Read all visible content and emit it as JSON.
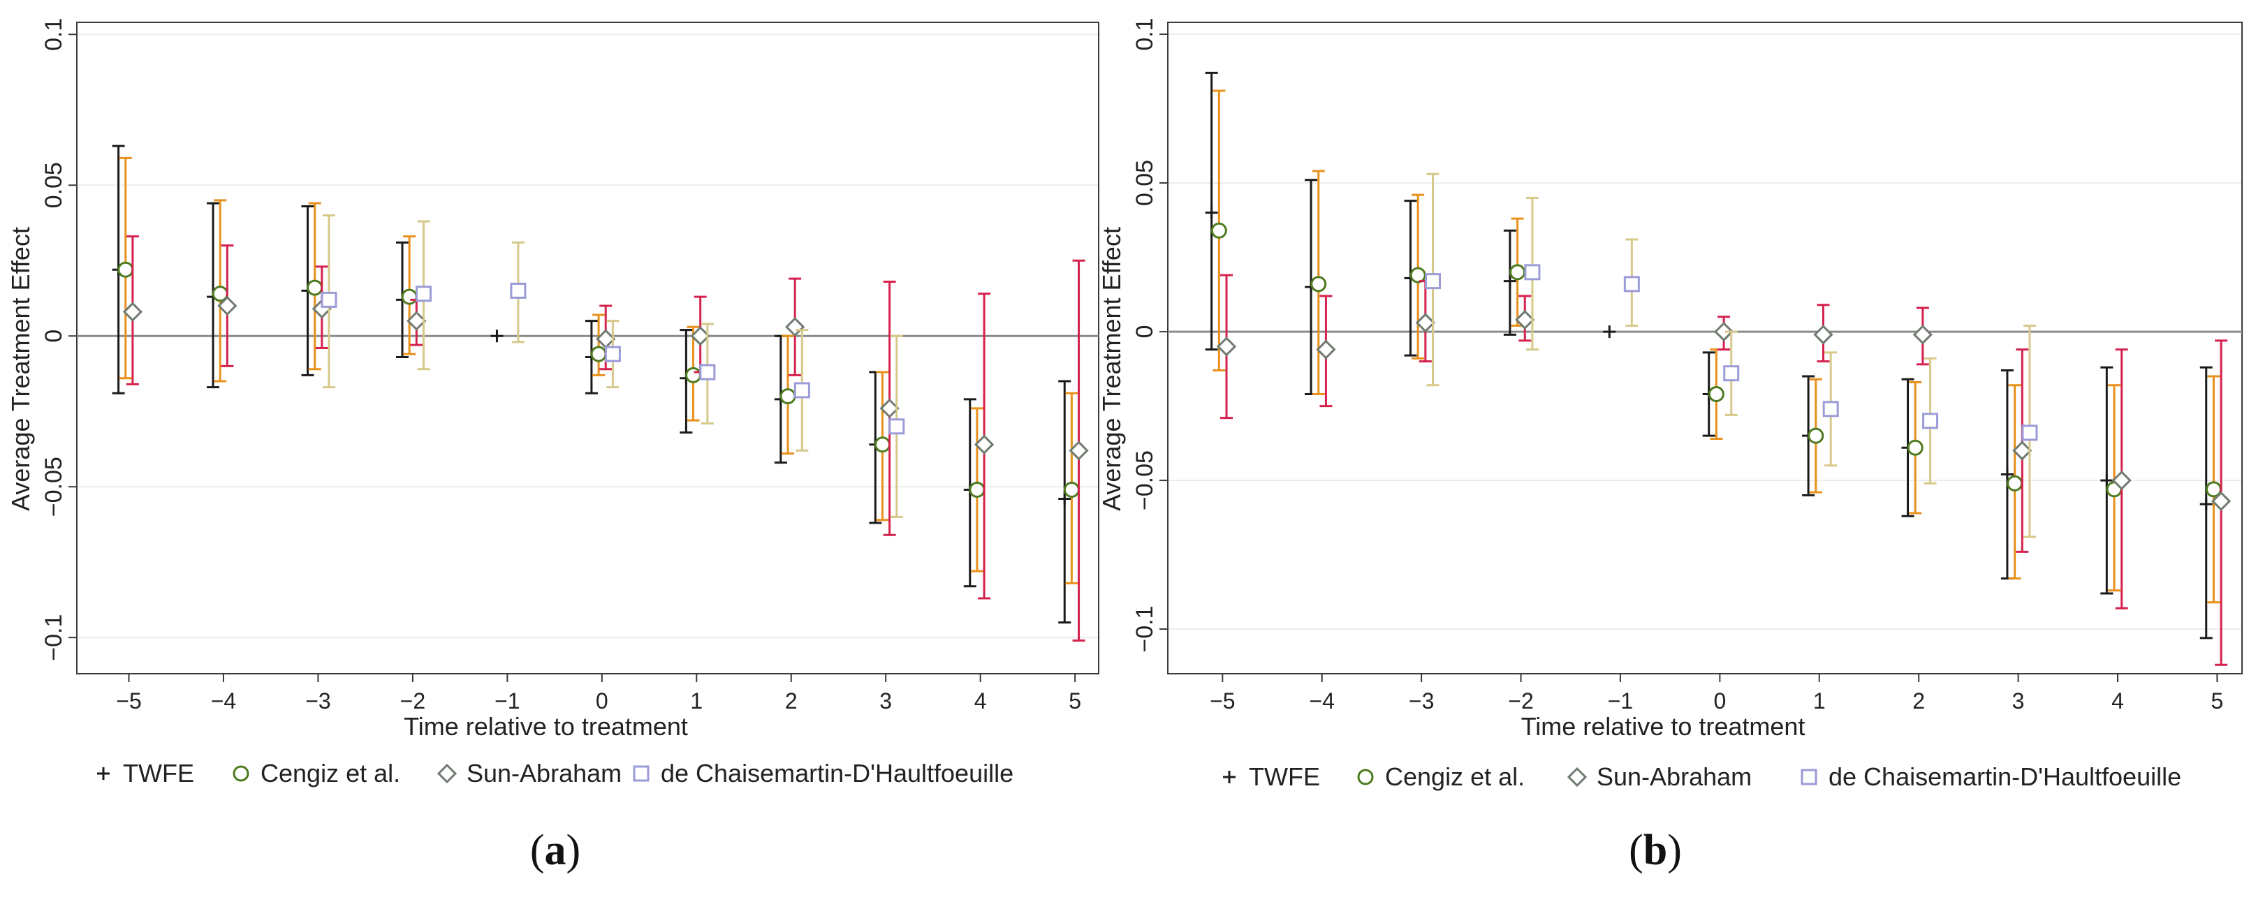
{
  "panels": [
    {
      "label_prefix": "(",
      "label_letter": "a",
      "label_suffix": ")",
      "chart_data": {
        "type": "scatter",
        "xlabel": "Time relative to treatment",
        "ylabel": "Average Treatment Effect",
        "x_ticks": [
          -5,
          -4,
          -3,
          -2,
          -1,
          0,
          1,
          2,
          3,
          4,
          5
        ],
        "x_tick_labels": [
          "−5",
          "−4",
          "−3",
          "−2",
          "−1",
          "0",
          "1",
          "2",
          "3",
          "4",
          "5"
        ],
        "y_ticks": [
          -0.1,
          -0.05,
          0,
          0.05,
          0.1
        ],
        "y_tick_labels": [
          "−0.1",
          "−0.05",
          "0",
          "0.05",
          "0.1"
        ],
        "xlim": [
          -5.55,
          5.25
        ],
        "ylim": [
          -0.112,
          0.104
        ],
        "legend": {
          "position": "bottom",
          "entries": [
            {
              "marker": "plus",
              "label": "TWFE"
            },
            {
              "marker": "circle",
              "label": "Cengiz et al."
            },
            {
              "marker": "diamond",
              "label": "Sun-Abraham"
            },
            {
              "marker": "square",
              "label": "de Chaisemartin-D'Haultfoeuille"
            }
          ]
        },
        "series": [
          {
            "name": "TWFE",
            "color": "#1a1a1a",
            "marker": "plus",
            "points": [
              {
                "t": -5,
                "est": 0.022,
                "lo": -0.019,
                "hi": 0.063
              },
              {
                "t": -4,
                "est": 0.013,
                "lo": -0.017,
                "hi": 0.044
              },
              {
                "t": -3,
                "est": 0.015,
                "lo": -0.013,
                "hi": 0.043
              },
              {
                "t": -2,
                "est": 0.012,
                "lo": -0.007,
                "hi": 0.031
              },
              {
                "t": -1,
                "est": 0.0,
                "lo": 0.0,
                "hi": 0.0
              },
              {
                "t": 0,
                "est": -0.007,
                "lo": -0.019,
                "hi": 0.005
              },
              {
                "t": 1,
                "est": -0.014,
                "lo": -0.032,
                "hi": 0.002
              },
              {
                "t": 2,
                "est": -0.021,
                "lo": -0.042,
                "hi": 0.0
              },
              {
                "t": 3,
                "est": -0.036,
                "lo": -0.062,
                "hi": -0.012
              },
              {
                "t": 4,
                "est": -0.051,
                "lo": -0.083,
                "hi": -0.021
              },
              {
                "t": 5,
                "est": -0.054,
                "lo": -0.095,
                "hi": -0.015
              }
            ]
          },
          {
            "name": "Cengiz et al.",
            "color": "#4e7a1e",
            "bar_color": "#e8901c",
            "marker": "circle",
            "points": [
              {
                "t": -5,
                "est": 0.022,
                "lo": -0.014,
                "hi": 0.059
              },
              {
                "t": -4,
                "est": 0.014,
                "lo": -0.015,
                "hi": 0.045
              },
              {
                "t": -3,
                "est": 0.016,
                "lo": -0.011,
                "hi": 0.044
              },
              {
                "t": -2,
                "est": 0.013,
                "lo": -0.006,
                "hi": 0.033
              },
              {
                "t": 0,
                "est": -0.006,
                "lo": -0.013,
                "hi": 0.007
              },
              {
                "t": 1,
                "est": -0.013,
                "lo": -0.028,
                "hi": 0.003
              },
              {
                "t": 2,
                "est": -0.02,
                "lo": -0.039,
                "hi": 0.0
              },
              {
                "t": 3,
                "est": -0.036,
                "lo": -0.061,
                "hi": -0.012
              },
              {
                "t": 4,
                "est": -0.051,
                "lo": -0.078,
                "hi": -0.024
              },
              {
                "t": 5,
                "est": -0.051,
                "lo": -0.082,
                "hi": -0.019
              }
            ]
          },
          {
            "name": "Sun-Abraham",
            "color": "#707a70",
            "bar_color": "#d4214d",
            "marker": "diamond",
            "points": [
              {
                "t": -5,
                "est": 0.008,
                "lo": -0.016,
                "hi": 0.033
              },
              {
                "t": -4,
                "est": 0.01,
                "lo": -0.01,
                "hi": 0.03
              },
              {
                "t": -3,
                "est": 0.009,
                "lo": -0.004,
                "hi": 0.023
              },
              {
                "t": -2,
                "est": 0.005,
                "lo": -0.003,
                "hi": 0.012
              },
              {
                "t": 0,
                "est": -0.001,
                "lo": -0.011,
                "hi": 0.01
              },
              {
                "t": 1,
                "est": 0.0,
                "lo": -0.012,
                "hi": 0.013
              },
              {
                "t": 2,
                "est": 0.003,
                "lo": -0.013,
                "hi": 0.019
              },
              {
                "t": 3,
                "est": -0.024,
                "lo": -0.066,
                "hi": 0.018
              },
              {
                "t": 4,
                "est": -0.036,
                "lo": -0.087,
                "hi": 0.014
              },
              {
                "t": 5,
                "est": -0.038,
                "lo": -0.101,
                "hi": 0.025
              }
            ]
          },
          {
            "name": "de Chaisemartin-D'Haultfoeuille",
            "color": "#9b9bd8",
            "bar_color": "#d6c98a",
            "marker": "square",
            "points": [
              {
                "t": -3,
                "est": 0.012,
                "lo": -0.017,
                "hi": 0.04
              },
              {
                "t": -2,
                "est": 0.014,
                "lo": -0.011,
                "hi": 0.038
              },
              {
                "t": -1,
                "est": 0.015,
                "lo": -0.002,
                "hi": 0.031
              },
              {
                "t": 0,
                "est": -0.006,
                "lo": -0.017,
                "hi": 0.005
              },
              {
                "t": 1,
                "est": -0.012,
                "lo": -0.029,
                "hi": 0.004
              },
              {
                "t": 2,
                "est": -0.018,
                "lo": -0.038,
                "hi": 0.002
              },
              {
                "t": 3,
                "est": -0.03,
                "lo": -0.06,
                "hi": 0.0
              }
            ]
          }
        ]
      }
    },
    {
      "label_prefix": "(",
      "label_letter": "b",
      "label_suffix": ")",
      "chart_data": {
        "type": "scatter",
        "xlabel": "Time relative to treatment",
        "ylabel": "Average Treatment Effect",
        "x_ticks": [
          -5,
          -4,
          -3,
          -2,
          -1,
          0,
          1,
          2,
          3,
          4,
          5
        ],
        "x_tick_labels": [
          "−5",
          "−4",
          "−3",
          "−2",
          "−1",
          "0",
          "1",
          "2",
          "3",
          "4",
          "5"
        ],
        "y_ticks": [
          -0.1,
          -0.05,
          0,
          0.05,
          0.1
        ],
        "y_tick_labels": [
          "−0.1",
          "−0.05",
          "0",
          "0.05",
          "0.1"
        ],
        "xlim": [
          -5.55,
          5.25
        ],
        "ylim": [
          -0.115,
          0.104
        ],
        "legend": {
          "position": "bottom",
          "entries": [
            {
              "marker": "plus",
              "label": "TWFE"
            },
            {
              "marker": "circle",
              "label": "Cengiz et al."
            },
            {
              "marker": "diamond",
              "label": "Sun-Abraham"
            },
            {
              "marker": "square",
              "label": "de Chaisemartin-D'Haultfoeuille"
            }
          ]
        },
        "series": [
          {
            "name": "TWFE",
            "color": "#1a1a1a",
            "marker": "plus",
            "points": [
              {
                "t": -5,
                "est": 0.04,
                "lo": -0.006,
                "hi": 0.087
              },
              {
                "t": -4,
                "est": 0.015,
                "lo": -0.021,
                "hi": 0.051
              },
              {
                "t": -3,
                "est": 0.018,
                "lo": -0.008,
                "hi": 0.044
              },
              {
                "t": -2,
                "est": 0.017,
                "lo": -0.001,
                "hi": 0.034
              },
              {
                "t": -1,
                "est": 0.0,
                "lo": 0.0,
                "hi": 0.0
              },
              {
                "t": 0,
                "est": -0.021,
                "lo": -0.035,
                "hi": -0.007
              },
              {
                "t": 1,
                "est": -0.035,
                "lo": -0.055,
                "hi": -0.015
              },
              {
                "t": 2,
                "est": -0.039,
                "lo": -0.062,
                "hi": -0.016
              },
              {
                "t": 3,
                "est": -0.048,
                "lo": -0.083,
                "hi": -0.013
              },
              {
                "t": 4,
                "est": -0.05,
                "lo": -0.088,
                "hi": -0.012
              },
              {
                "t": 5,
                "est": -0.058,
                "lo": -0.103,
                "hi": -0.012
              }
            ]
          },
          {
            "name": "Cengiz et al.",
            "color": "#4e7a1e",
            "bar_color": "#e8901c",
            "marker": "circle",
            "points": [
              {
                "t": -5,
                "est": 0.034,
                "lo": -0.013,
                "hi": 0.081
              },
              {
                "t": -4,
                "est": 0.016,
                "lo": -0.021,
                "hi": 0.054
              },
              {
                "t": -3,
                "est": 0.019,
                "lo": -0.009,
                "hi": 0.046
              },
              {
                "t": -2,
                "est": 0.02,
                "lo": 0.002,
                "hi": 0.038
              },
              {
                "t": 0,
                "est": -0.021,
                "lo": -0.036,
                "hi": -0.006
              },
              {
                "t": 1,
                "est": -0.035,
                "lo": -0.054,
                "hi": -0.016
              },
              {
                "t": 2,
                "est": -0.039,
                "lo": -0.061,
                "hi": -0.017
              },
              {
                "t": 3,
                "est": -0.051,
                "lo": -0.083,
                "hi": -0.018
              },
              {
                "t": 4,
                "est": -0.053,
                "lo": -0.087,
                "hi": -0.018
              },
              {
                "t": 5,
                "est": -0.053,
                "lo": -0.091,
                "hi": -0.015
              }
            ]
          },
          {
            "name": "Sun-Abraham",
            "color": "#707a70",
            "bar_color": "#d4214d",
            "marker": "diamond",
            "points": [
              {
                "t": -5,
                "est": -0.005,
                "lo": -0.029,
                "hi": 0.019
              },
              {
                "t": -4,
                "est": -0.006,
                "lo": -0.025,
                "hi": 0.012
              },
              {
                "t": -3,
                "est": 0.003,
                "lo": -0.01,
                "hi": 0.017
              },
              {
                "t": -2,
                "est": 0.004,
                "lo": -0.003,
                "hi": 0.012
              },
              {
                "t": 0,
                "est": 0.0,
                "lo": -0.006,
                "hi": 0.005
              },
              {
                "t": 1,
                "est": -0.001,
                "lo": -0.01,
                "hi": 0.009
              },
              {
                "t": 2,
                "est": -0.001,
                "lo": -0.011,
                "hi": 0.008
              },
              {
                "t": 3,
                "est": -0.04,
                "lo": -0.074,
                "hi": -0.006
              },
              {
                "t": 4,
                "est": -0.05,
                "lo": -0.093,
                "hi": -0.006
              },
              {
                "t": 5,
                "est": -0.057,
                "lo": -0.112,
                "hi": -0.003
              }
            ]
          },
          {
            "name": "de Chaisemartin-D'Haultfoeuille",
            "color": "#9b9bd8",
            "bar_color": "#d6c98a",
            "marker": "square",
            "points": [
              {
                "t": -3,
                "est": 0.017,
                "lo": -0.018,
                "hi": 0.053
              },
              {
                "t": -2,
                "est": 0.02,
                "lo": -0.006,
                "hi": 0.045
              },
              {
                "t": -1,
                "est": 0.016,
                "lo": 0.002,
                "hi": 0.031
              },
              {
                "t": 0,
                "est": -0.014,
                "lo": -0.028,
                "hi": 0.0
              },
              {
                "t": 1,
                "est": -0.026,
                "lo": -0.045,
                "hi": -0.007
              },
              {
                "t": 2,
                "est": -0.03,
                "lo": -0.051,
                "hi": -0.009
              },
              {
                "t": 3,
                "est": -0.034,
                "lo": -0.069,
                "hi": 0.002
              }
            ]
          }
        ]
      }
    }
  ]
}
